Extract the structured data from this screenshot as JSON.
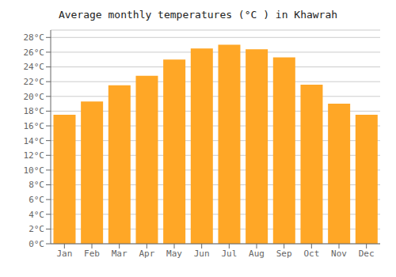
{
  "chart_data": {
    "type": "bar",
    "title": "Average monthly temperatures (°C ) in Khawrah",
    "categories": [
      "Jan",
      "Feb",
      "Mar",
      "Apr",
      "May",
      "Jun",
      "Jul",
      "Aug",
      "Sep",
      "Oct",
      "Nov",
      "Dec"
    ],
    "values": [
      17.5,
      19.3,
      21.5,
      22.8,
      25.0,
      26.5,
      27.0,
      26.4,
      25.3,
      21.6,
      19.0,
      17.5
    ],
    "color": "#FFA726",
    "ylim": [
      0,
      29
    ],
    "yticks": [
      {
        "value": 0,
        "label": "0°C"
      },
      {
        "value": 2,
        "label": "2°C"
      },
      {
        "value": 4,
        "label": "4°C"
      },
      {
        "value": 6,
        "label": "6°C"
      },
      {
        "value": 8,
        "label": "8°C"
      },
      {
        "value": 10,
        "label": "10°C"
      },
      {
        "value": 12,
        "label": "12°C"
      },
      {
        "value": 14,
        "label": "14°C"
      },
      {
        "value": 16,
        "label": "16°C"
      },
      {
        "value": 18,
        "label": "18°C"
      },
      {
        "value": 20,
        "label": "20°C"
      },
      {
        "value": 22,
        "label": "22°C"
      },
      {
        "value": 24,
        "label": "24°C"
      },
      {
        "value": 26,
        "label": "26°C"
      },
      {
        "value": 28,
        "label": "28°C"
      }
    ],
    "grid": true
  }
}
